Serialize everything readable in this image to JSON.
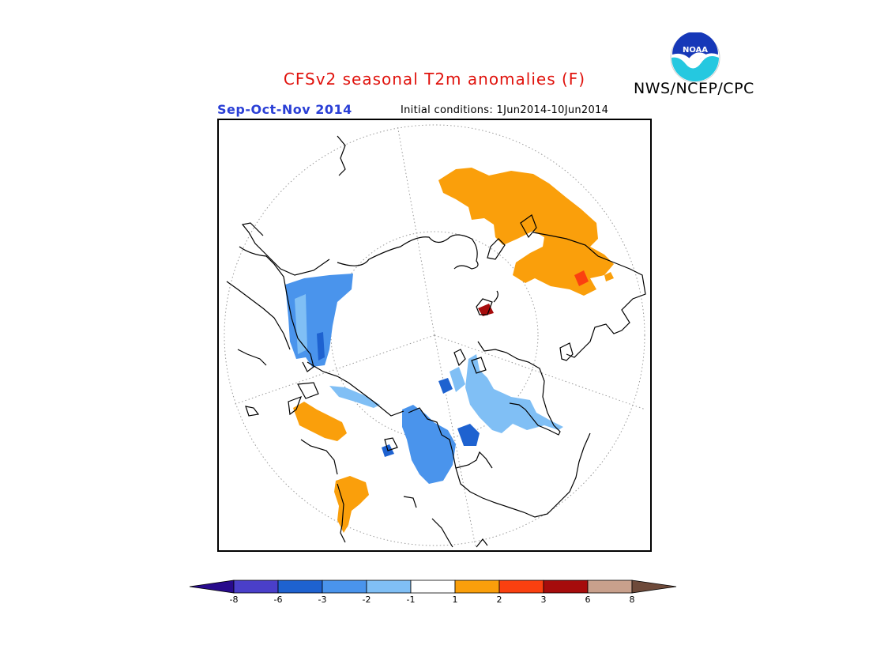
{
  "title": "CFSv2 seasonal T2m anomalies (F)",
  "agency": "NWS/NCEP/CPC",
  "logo": {
    "text": "NOAA",
    "icon": "noaa-logo-icon"
  },
  "season": "Sep-Oct-Nov 2014",
  "initial_conditions": "Initial conditions: 1Jun2014-10Jun2014",
  "map": {
    "projection": "north polar stereographic",
    "graticule": "dotted"
  },
  "colorbar": {
    "labels": [
      "-8",
      "-6",
      "-3",
      "-2",
      "-1",
      "1",
      "2",
      "3",
      "6",
      "8"
    ],
    "colors": [
      "#280b8c",
      "#4a3fc9",
      "#1e62d0",
      "#4a94ec",
      "#80bff5",
      "#ffffff",
      "#fa9f0b",
      "#fa4010",
      "#a60c0c",
      "#c8a08c",
      "#6e4a3a"
    ]
  },
  "anomaly_colors": {
    "warm_1_2": "#fa9f0b",
    "warm_2_3": "#fa4010",
    "warm_3_6": "#a60c0c",
    "cool_1_2": "#80bff5",
    "cool_2_3": "#4a94ec",
    "cool_3_6": "#1e62d0"
  }
}
